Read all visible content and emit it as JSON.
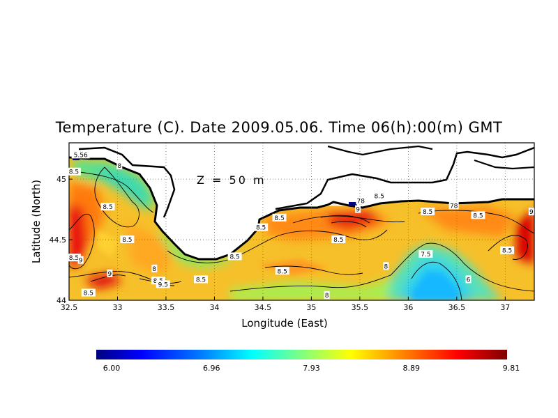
{
  "title": "Temperature (C). Date 2009.05.06. Time 06(h):00(m) GMT",
  "depth_label": "Z  =  50  m",
  "x_axis": {
    "label": "Longitude (East)",
    "ticks": [
      "32.5",
      "33",
      "33.5",
      "34",
      "34.5",
      "35",
      "35.5",
      "36",
      "36.5",
      "37"
    ],
    "range": [
      32.5,
      37.3
    ]
  },
  "y_axis": {
    "label": "Latitude (North)",
    "ticks": [
      "44",
      "44.5",
      "45"
    ],
    "range": [
      44.0,
      45.3
    ]
  },
  "colorbar": {
    "min": 6.0,
    "max": 9.81,
    "labels": [
      "6.00",
      "6.96",
      "7.93",
      "8.89",
      "9.81"
    ]
  },
  "contour_labels": [
    {
      "text": "5.56",
      "lon": 32.62,
      "lat": 45.2
    },
    {
      "text": "8",
      "lon": 33.02,
      "lat": 45.11
    },
    {
      "text": "8.5",
      "lon": 32.55,
      "lat": 45.06
    },
    {
      "text": "8.5",
      "lon": 32.9,
      "lat": 44.77
    },
    {
      "text": "8.5",
      "lon": 33.1,
      "lat": 44.5
    },
    {
      "text": "8.5",
      "lon": 32.55,
      "lat": 44.35
    },
    {
      "text": "9",
      "lon": 32.62,
      "lat": 44.33
    },
    {
      "text": "9",
      "lon": 32.92,
      "lat": 44.22
    },
    {
      "text": "8.5",
      "lon": 32.7,
      "lat": 44.06
    },
    {
      "text": "8.5",
      "lon": 33.42,
      "lat": 44.16
    },
    {
      "text": "9.5",
      "lon": 33.47,
      "lat": 44.13
    },
    {
      "text": "8",
      "lon": 33.38,
      "lat": 44.26
    },
    {
      "text": "8.5",
      "lon": 33.86,
      "lat": 44.17
    },
    {
      "text": "8.5",
      "lon": 34.21,
      "lat": 44.36
    },
    {
      "text": "8.5",
      "lon": 34.48,
      "lat": 44.6
    },
    {
      "text": "8.5",
      "lon": 34.67,
      "lat": 44.68
    },
    {
      "text": "8.5",
      "lon": 34.7,
      "lat": 44.24
    },
    {
      "text": "8.5",
      "lon": 35.28,
      "lat": 44.5
    },
    {
      "text": "8",
      "lon": 35.16,
      "lat": 44.04
    },
    {
      "text": "9",
      "lon": 35.48,
      "lat": 44.75
    },
    {
      "text": "78",
      "lon": 35.51,
      "lat": 44.82
    },
    {
      "text": "8.5",
      "lon": 35.7,
      "lat": 44.86
    },
    {
      "text": "8.5",
      "lon": 36.2,
      "lat": 44.73
    },
    {
      "text": "78",
      "lon": 36.47,
      "lat": 44.78
    },
    {
      "text": "8.5",
      "lon": 36.72,
      "lat": 44.7
    },
    {
      "text": "9",
      "lon": 37.27,
      "lat": 44.73
    },
    {
      "text": "8.5",
      "lon": 37.02,
      "lat": 44.41
    },
    {
      "text": "8",
      "lon": 35.77,
      "lat": 44.28
    },
    {
      "text": "7.5",
      "lon": 36.18,
      "lat": 44.38
    },
    {
      "text": "6",
      "lon": 36.62,
      "lat": 44.17
    }
  ]
}
